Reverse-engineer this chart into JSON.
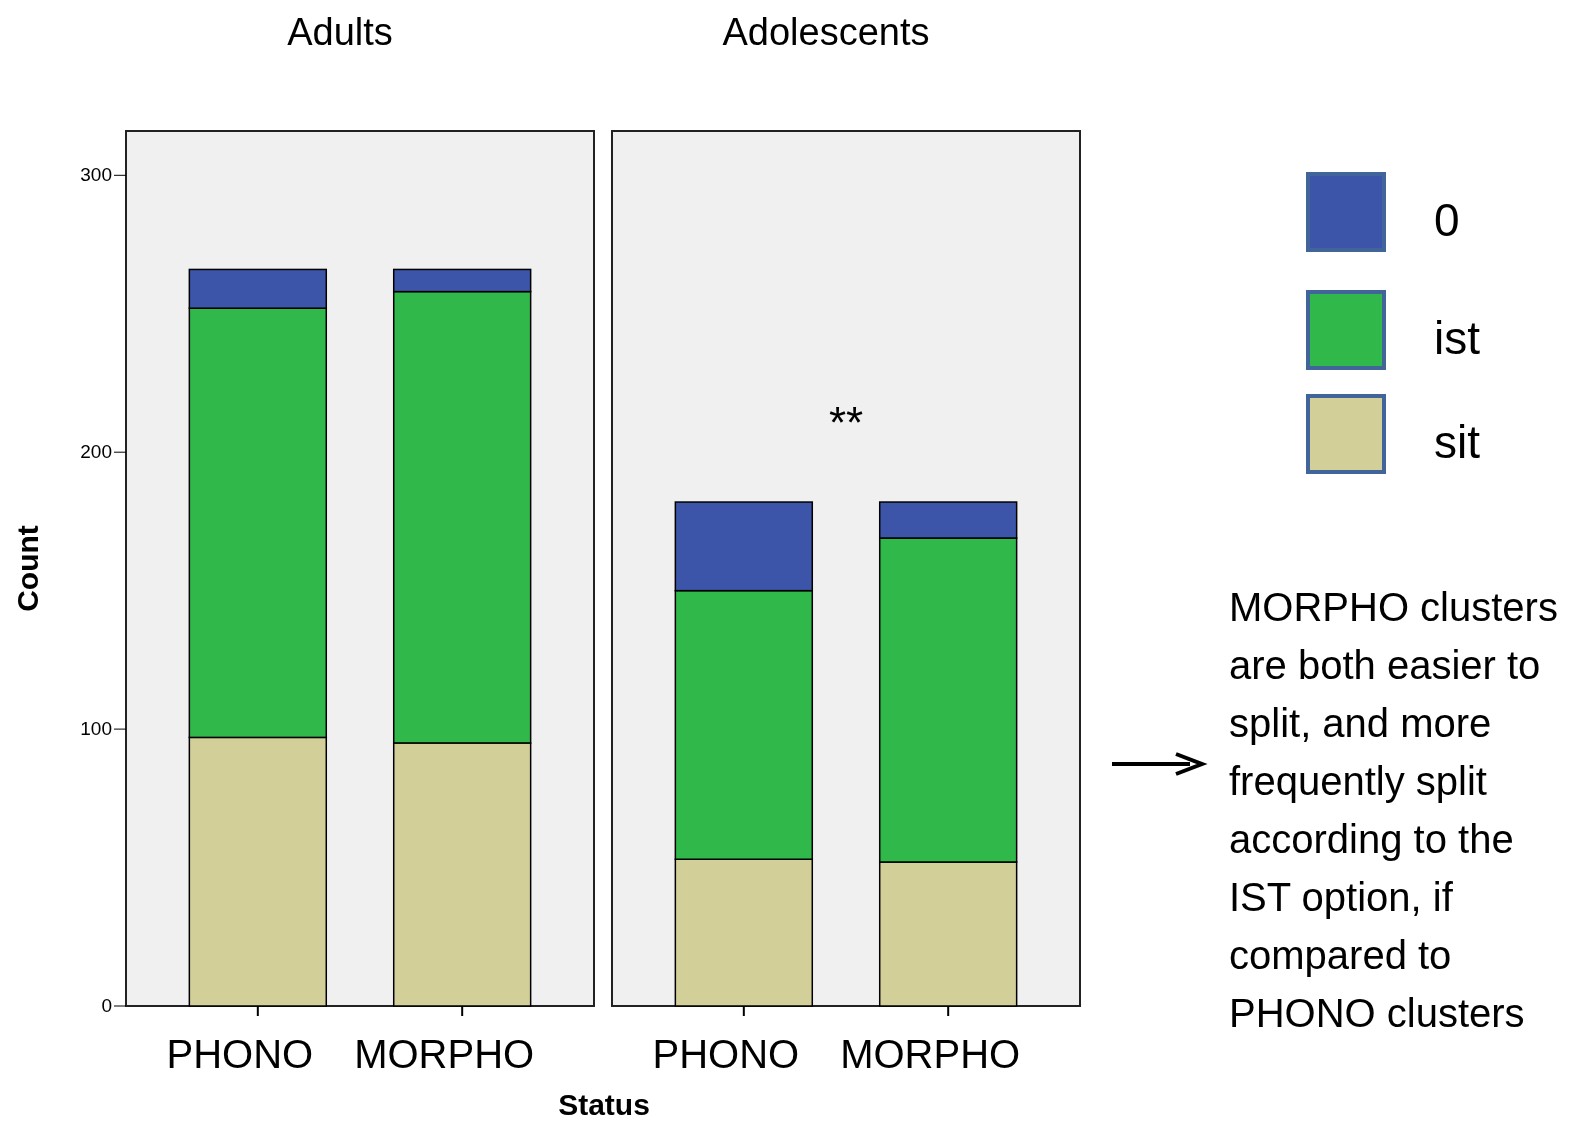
{
  "chart_data": [
    {
      "type": "bar",
      "title": "Adults",
      "ylabel": "Count",
      "xlabel": "Status",
      "stacked": true,
      "categories": [
        "PHONO",
        "MORPHO"
      ],
      "ylim": [
        0,
        316
      ],
      "yticks": [
        0,
        100,
        200,
        300
      ],
      "legend": false,
      "series": [
        {
          "color": "#d3cf98",
          "values": [
            97,
            95
          ]
        },
        {
          "color": "#30b84a",
          "values": [
            155,
            163
          ]
        },
        {
          "color": "#3d55a8",
          "values": [
            14,
            8
          ]
        }
      ]
    },
    {
      "type": "bar",
      "title": "Adolescents",
      "stacked": true,
      "categories": [
        "PHONO",
        "MORPHO"
      ],
      "ylim": [
        0,
        316
      ],
      "tick_labels": "x",
      "legend": "right",
      "annotations": [
        "**",
        "MORPHO clusters are both easier to split, and more frequently split according to the IST option, if compared to PHONO clusters"
      ],
      "series": [
        {
          "name": "sit",
          "color": "#d3cf98",
          "values": [
            53,
            52
          ]
        },
        {
          "name": "ist",
          "color": "#30b84a",
          "values": [
            97,
            117
          ]
        },
        {
          "name": "0",
          "color": "#3d55a8",
          "values": [
            32,
            13
          ]
        }
      ]
    }
  ]
}
